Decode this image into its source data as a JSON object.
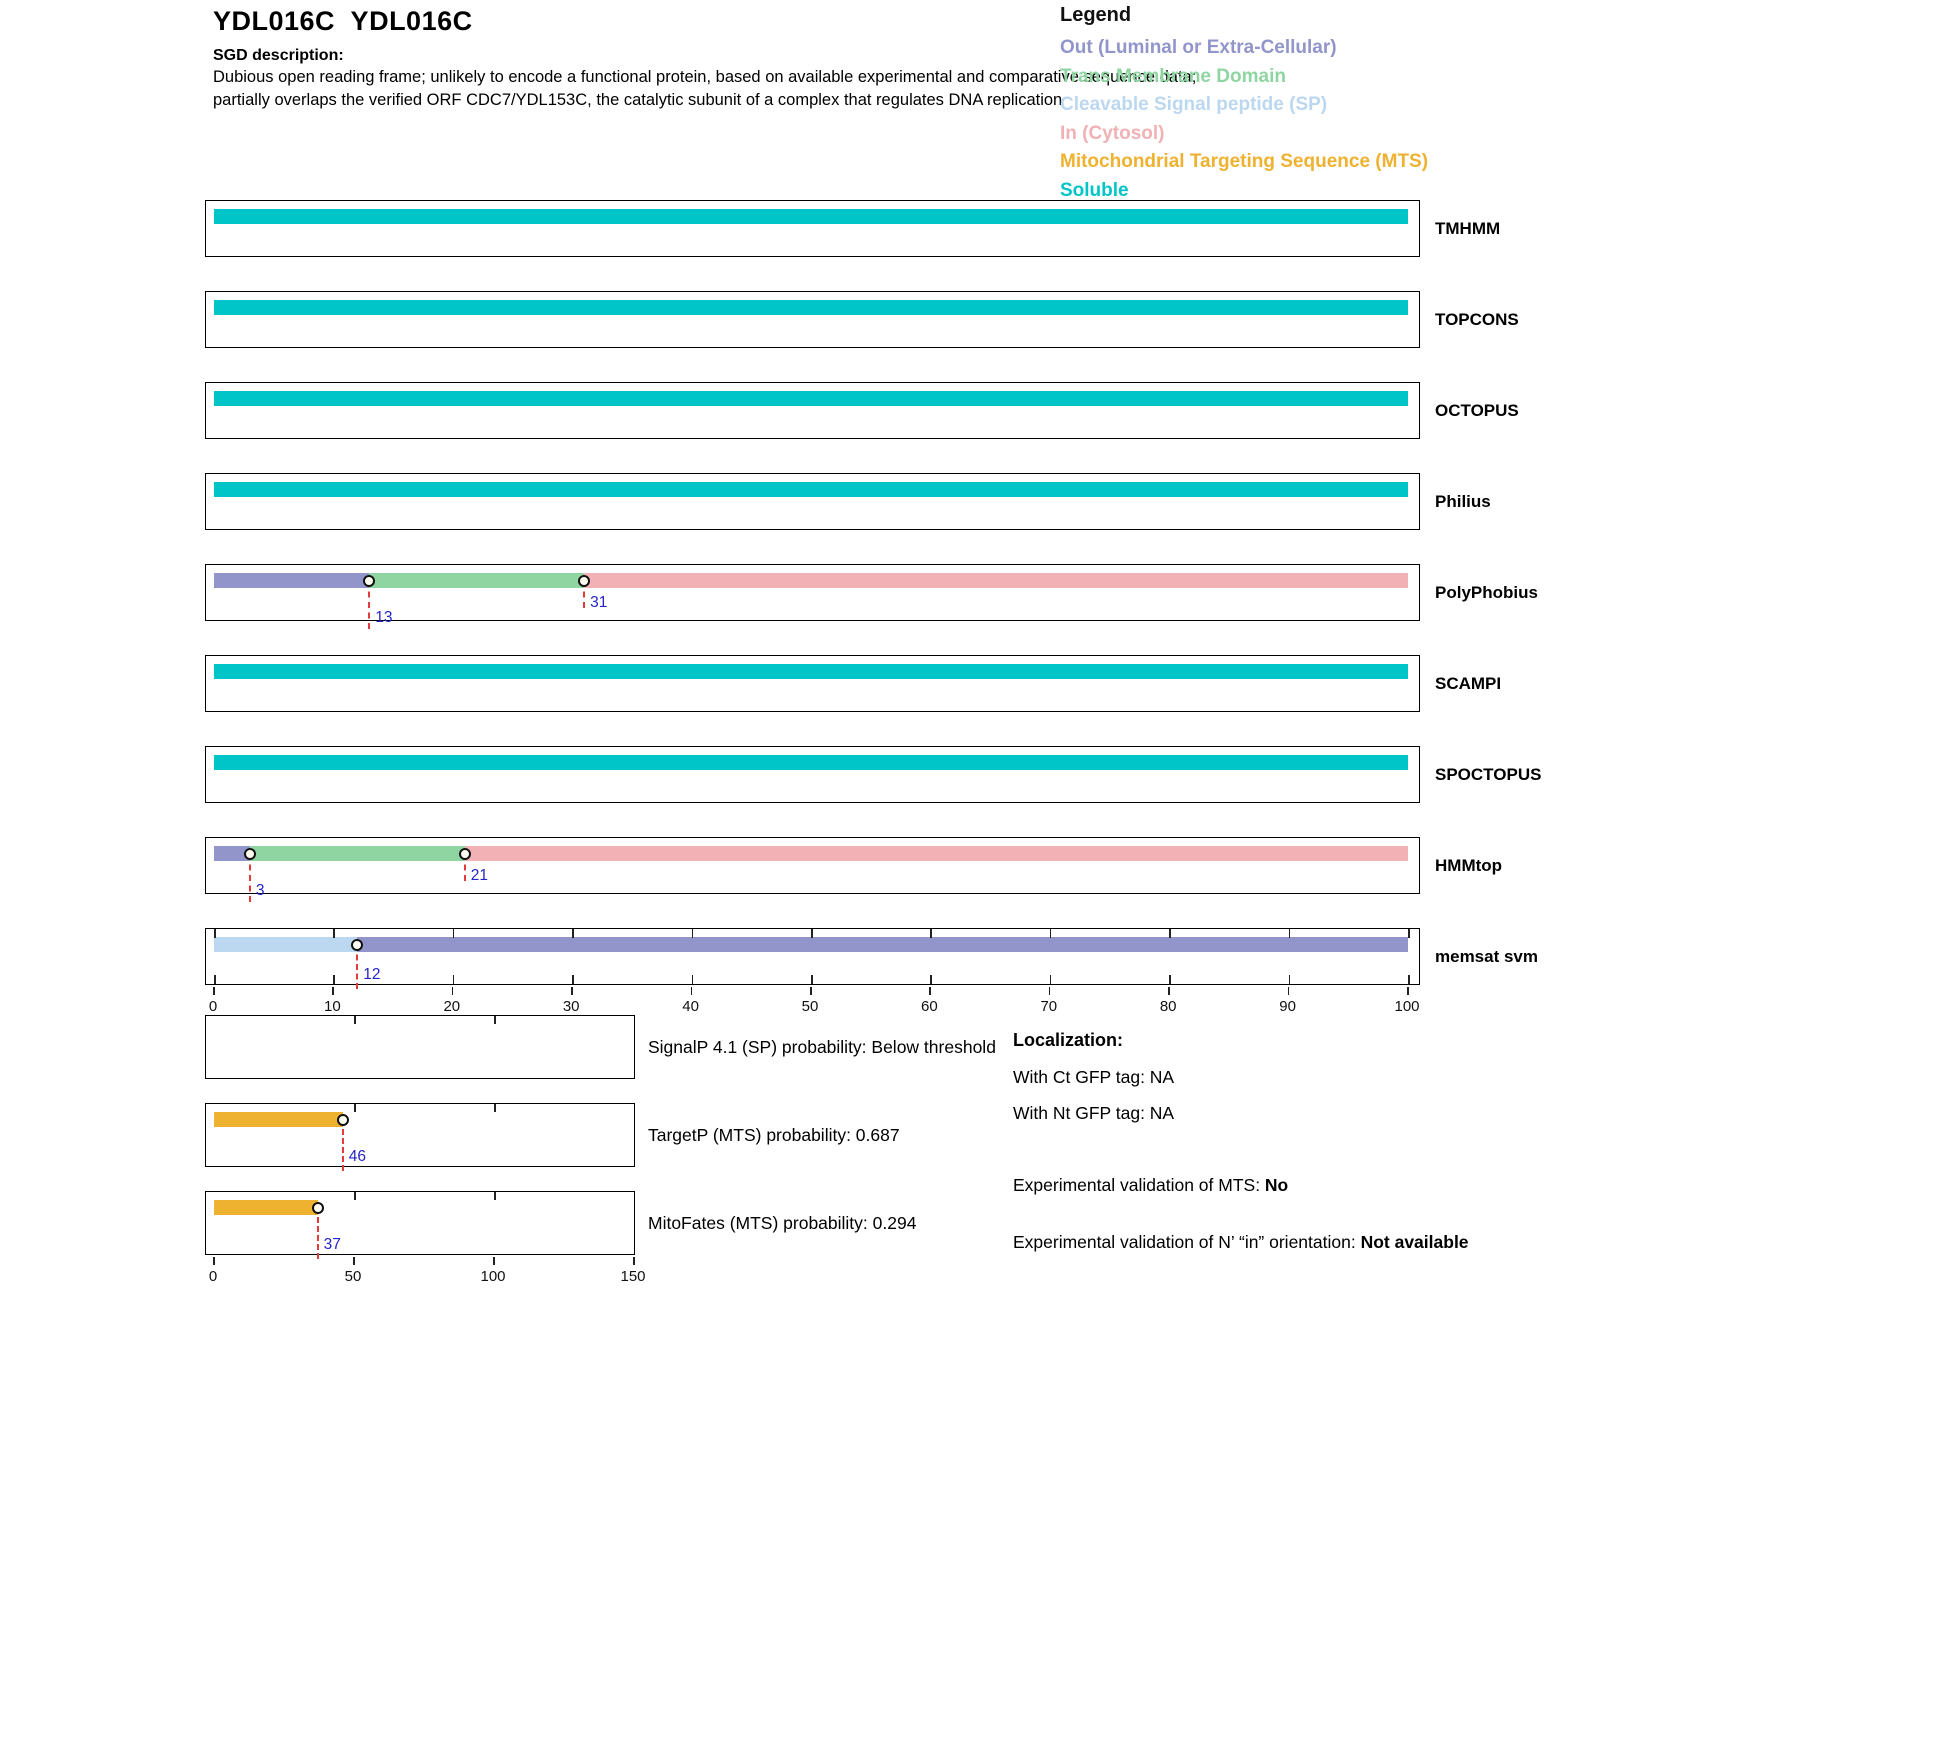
{
  "header": {
    "title": "YDL016C  YDL016C",
    "sgd_label": "SGD description:",
    "sgd_text": "Dubious open reading frame; unlikely to encode a functional protein, based on available experimental and comparative sequence data; partially overlaps the verified ORF CDC7/YDL153C, the catalytic subunit of a complex that regulates DNA replication"
  },
  "legend": {
    "title": "Legend",
    "items": [
      {
        "key": "out",
        "label": "Out (Luminal or Extra-Cellular)"
      },
      {
        "key": "tm",
        "label": "Trans Membrane Domain"
      },
      {
        "key": "sp",
        "label": "Cleavable Signal peptide (SP)"
      },
      {
        "key": "in",
        "label": "In (Cytosol)"
      },
      {
        "key": "mts",
        "label": "Mitochondrial Targeting Sequence (MTS)"
      },
      {
        "key": "soluble",
        "label": "Soluble"
      }
    ]
  },
  "colors": {
    "out": "#9295ca",
    "tm": "#8fd5a2",
    "sp": "#bcd7f0",
    "in": "#f1b1b5",
    "mts": "#eeb230",
    "soluble": "#00c5c8",
    "boundary_line": "#e23b3b",
    "boundary_label": "#2424c8"
  },
  "chart_data": {
    "type": "bar",
    "topology": {
      "xlim": [
        0,
        100
      ],
      "x_ticks": [
        0,
        10,
        20,
        30,
        40,
        50,
        60,
        70,
        80,
        90,
        100
      ],
      "tracks": [
        {
          "name": "TMHMM",
          "segments": [
            {
              "start": 0,
              "end": 100,
              "class": "soluble"
            }
          ],
          "boundaries": []
        },
        {
          "name": "TOPCONS",
          "segments": [
            {
              "start": 0,
              "end": 100,
              "class": "soluble"
            }
          ],
          "boundaries": []
        },
        {
          "name": "OCTOPUS",
          "segments": [
            {
              "start": 0,
              "end": 100,
              "class": "soluble"
            }
          ],
          "boundaries": []
        },
        {
          "name": "Philius",
          "segments": [
            {
              "start": 0,
              "end": 100,
              "class": "soluble"
            }
          ],
          "boundaries": []
        },
        {
          "name": "PolyPhobius",
          "segments": [
            {
              "start": 0,
              "end": 13,
              "class": "out"
            },
            {
              "start": 13,
              "end": 31,
              "class": "tm"
            },
            {
              "start": 31,
              "end": 100,
              "class": "in"
            }
          ],
          "boundaries": [
            13,
            31
          ]
        },
        {
          "name": "SCAMPI",
          "segments": [
            {
              "start": 0,
              "end": 100,
              "class": "soluble"
            }
          ],
          "boundaries": []
        },
        {
          "name": "SPOCTOPUS",
          "segments": [
            {
              "start": 0,
              "end": 100,
              "class": "soluble"
            }
          ],
          "boundaries": []
        },
        {
          "name": "HMMtop",
          "segments": [
            {
              "start": 0,
              "end": 3,
              "class": "out"
            },
            {
              "start": 3,
              "end": 21,
              "class": "tm"
            },
            {
              "start": 21,
              "end": 100,
              "class": "in"
            }
          ],
          "boundaries": [
            3,
            21
          ]
        },
        {
          "name": "memsat svm",
          "segments": [
            {
              "start": 0,
              "end": 12,
              "class": "sp"
            },
            {
              "start": 12,
              "end": 100,
              "class": "out"
            }
          ],
          "boundaries": [
            12
          ],
          "edge_ticks": true
        }
      ]
    },
    "probability": {
      "xlim": [
        0,
        150
      ],
      "x_ticks": [
        0,
        50,
        100,
        150
      ],
      "plots": [
        {
          "label": "SignalP 4.1 (SP) probability: Below threshold",
          "segments": [],
          "boundaries": []
        },
        {
          "label": "TargetP (MTS) probability: 0.687",
          "segments": [
            {
              "start": 0,
              "end": 46,
              "class": "mts"
            }
          ],
          "boundaries": [
            46
          ]
        },
        {
          "label": "MitoFates (MTS) probability: 0.294",
          "segments": [
            {
              "start": 0,
              "end": 37,
              "class": "mts"
            }
          ],
          "boundaries": [
            37
          ]
        }
      ]
    }
  },
  "localization": {
    "title": "Localization:",
    "lines": [
      "With Ct GFP tag: NA",
      "With Nt GFP tag: NA"
    ],
    "mts_prefix": "Experimental validation of MTS: ",
    "mts_value": "No",
    "orientation_prefix": "Experimental validation of N’ “in” orientation: ",
    "orientation_value": "Not available"
  }
}
